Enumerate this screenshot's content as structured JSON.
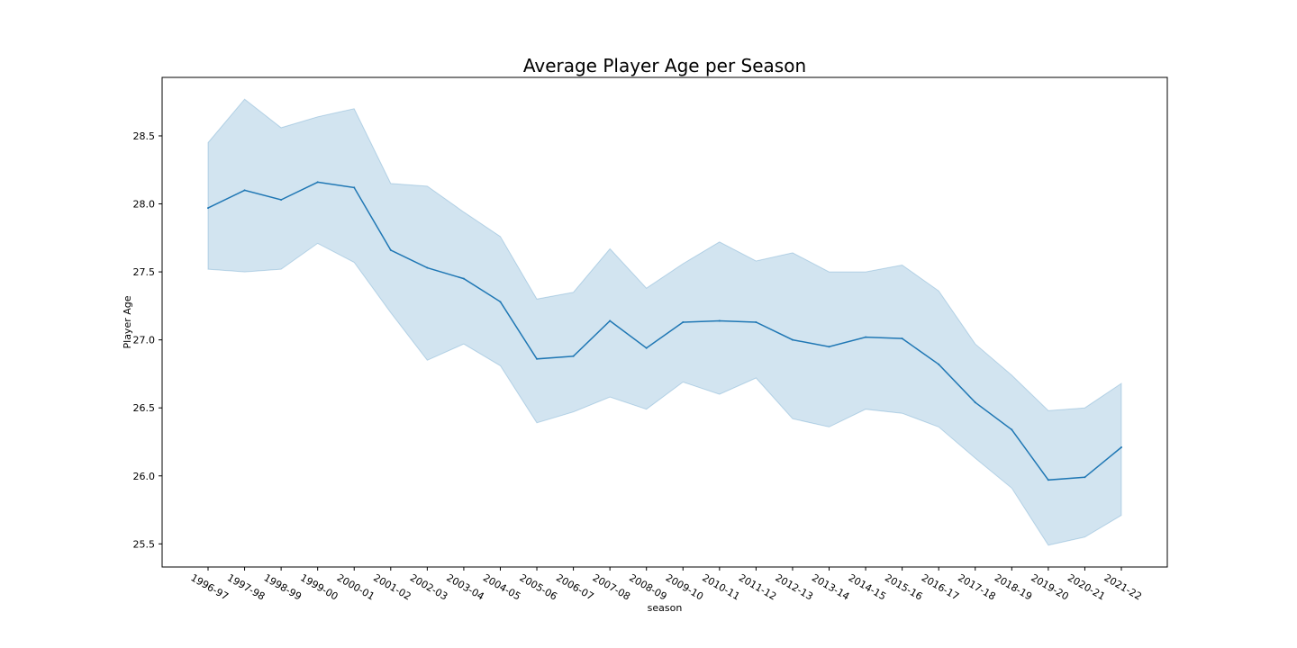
{
  "chart_data": {
    "type": "line",
    "title": "Average Player Age per Season",
    "xlabel": "season",
    "ylabel": "Player Age",
    "categories": [
      "1996-97",
      "1997-98",
      "1998-99",
      "1999-00",
      "2000-01",
      "2001-02",
      "2002-03",
      "2003-04",
      "2004-05",
      "2005-06",
      "2006-07",
      "2007-08",
      "2008-09",
      "2009-10",
      "2010-11",
      "2011-12",
      "2012-13",
      "2013-14",
      "2014-15",
      "2015-16",
      "2016-17",
      "2017-18",
      "2018-19",
      "2019-20",
      "2020-21",
      "2021-22"
    ],
    "series": [
      {
        "values": [
          27.97,
          28.1,
          28.03,
          28.16,
          28.12,
          27.66,
          27.53,
          27.45,
          27.28,
          26.86,
          26.88,
          27.14,
          26.94,
          27.13,
          27.14,
          27.13,
          27.0,
          26.95,
          27.02,
          27.01,
          26.82,
          26.54,
          26.34,
          25.97,
          25.99,
          26.21
        ],
        "ci_upper": [
          28.45,
          28.77,
          28.56,
          28.64,
          28.7,
          28.15,
          28.13,
          27.94,
          27.76,
          27.3,
          27.35,
          27.67,
          27.38,
          27.56,
          27.72,
          27.58,
          27.64,
          27.5,
          27.5,
          27.55,
          27.36,
          26.97,
          26.74,
          26.48,
          26.5,
          26.68
        ],
        "ci_lower": [
          27.52,
          27.5,
          27.52,
          27.71,
          27.57,
          27.2,
          26.85,
          26.97,
          26.81,
          26.39,
          26.47,
          26.58,
          26.49,
          26.69,
          26.6,
          26.72,
          26.42,
          26.36,
          26.49,
          26.46,
          26.36,
          26.13,
          25.91,
          25.49,
          25.55,
          25.71
        ],
        "color": "#1f77b4"
      }
    ],
    "yticks": [
      25.5,
      26.0,
      26.5,
      27.0,
      27.5,
      28.0,
      28.5
    ],
    "ytick_labels": [
      "25.5",
      "26.0",
      "26.5",
      "27.0",
      "27.5",
      "28.0",
      "28.5"
    ],
    "ylim": [
      25.33,
      28.93
    ],
    "grid": false,
    "band_color": "#1f77b4",
    "band_opacity": 0.2
  }
}
